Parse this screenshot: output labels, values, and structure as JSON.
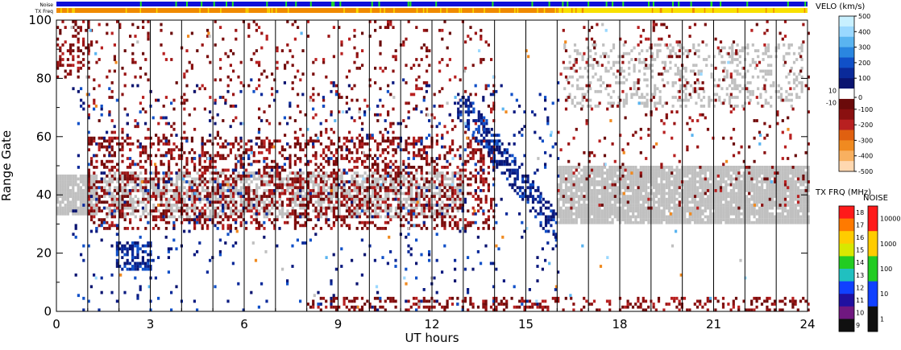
{
  "chart_data": {
    "type": "heatmap",
    "title": "",
    "xlabel": "UT hours",
    "ylabel": "Range Gate",
    "xlim": [
      0,
      24
    ],
    "ylim": [
      0,
      100
    ],
    "x_ticks": [
      "0",
      "3",
      "6",
      "9",
      "12",
      "15",
      "18",
      "21",
      "24"
    ],
    "y_ticks": [
      "0",
      "20",
      "40",
      "60",
      "80",
      "100"
    ],
    "status_bars": [
      {
        "label": "Noise",
        "base_color": "#1010d8",
        "accent_color": "#20e020"
      },
      {
        "label": "TX Freq",
        "segments": [
          {
            "from": 0,
            "to": 16,
            "color": "#f08a00"
          },
          {
            "from": 16,
            "to": 24,
            "color": "#f8e000"
          }
        ]
      }
    ],
    "colorbars": [
      {
        "title": "VELO (km/s)",
        "ticks": [
          "500",
          "400",
          "300",
          "200",
          "100",
          "10",
          "0",
          "-10",
          "-100",
          "-200",
          "-300",
          "-400",
          "-500"
        ],
        "colors": [
          "#c8f0ff",
          "#9ad8ff",
          "#5ab4f0",
          "#2a86e0",
          "#1050c8",
          "#0a2a9a",
          "#0a1470",
          "#ffffff",
          "#6a0a0a",
          "#8a1010",
          "#b82020",
          "#e06010",
          "#f08a20",
          "#f8b060",
          "#ffd8b0"
        ]
      },
      {
        "title": "TX FRQ (MHz)",
        "ticks": [
          "18",
          "17",
          "16",
          "15",
          "14",
          "13",
          "12",
          "11",
          "10",
          "9"
        ],
        "colors": [
          "#ff1a1a",
          "#ff7a00",
          "#ffcc00",
          "#d8e800",
          "#22cc22",
          "#20c0c0",
          "#1040ff",
          "#2010a0",
          "#701880",
          "#101010"
        ]
      },
      {
        "title": "NOISE",
        "ticks": [
          "10000",
          "1000",
          "100",
          "10",
          "1"
        ],
        "colors": [
          "#ff1a1a",
          "#ffcc00",
          "#22cc22",
          "#1040ff",
          "#101010"
        ]
      }
    ],
    "ground_scatter_color": "#c0c0c0",
    "regions": [
      {
        "name": "ground-scatter band 0-1.3h",
        "x": [
          0,
          1.3
        ],
        "gates": [
          33,
          47
        ],
        "kind": "ground",
        "density": 0.9
      },
      {
        "name": "ground-scatter band 1.5-13h",
        "x": [
          1.5,
          13
        ],
        "gates": [
          32,
          48
        ],
        "kind": "ground",
        "density": 0.55
      },
      {
        "name": "ground-scatter band 16-24h",
        "x": [
          16,
          24
        ],
        "gates": [
          30,
          50
        ],
        "kind": "ground",
        "density": 0.9
      },
      {
        "name": "ground-scatter upper 16-24h",
        "x": [
          16.2,
          23.8
        ],
        "gates": [
          70,
          92
        ],
        "kind": "ground",
        "density": 0.25
      },
      {
        "name": "negative velocity main band",
        "x": [
          1.0,
          14.0
        ],
        "gates": [
          28,
          60
        ],
        "kind": "neg",
        "density": 0.32
      },
      {
        "name": "negative velocity upper",
        "x": [
          1.0,
          14.0
        ],
        "gates": [
          55,
          100
        ],
        "kind": "neg",
        "density": 0.07
      },
      {
        "name": "negative velocity late",
        "x": [
          16.0,
          24.0
        ],
        "gates": [
          35,
          100
        ],
        "kind": "neg",
        "density": 0.05
      },
      {
        "name": "near-range negative",
        "x": [
          8.0,
          24.0
        ],
        "gates": [
          0,
          5
        ],
        "kind": "neg",
        "density": 0.3
      },
      {
        "name": "positive velocity 2-3h",
        "x": [
          1.9,
          3.0
        ],
        "gates": [
          14,
          24
        ],
        "kind": "pos",
        "density": 0.55
      },
      {
        "name": "positive velocity scattered",
        "x": [
          0.5,
          16.0
        ],
        "gates": [
          0,
          80
        ],
        "kind": "pos",
        "density": 0.03
      },
      {
        "name": "positive velocity streak 13-16h",
        "x": [
          12.8,
          16.0
        ],
        "gates": [
          20,
          75
        ],
        "kind": "posdiag",
        "density": 0.5
      },
      {
        "name": "mixed scatter 0-1h",
        "x": [
          0.0,
          1.0
        ],
        "gates": [
          80,
          100
        ],
        "kind": "neg",
        "density": 0.25
      }
    ]
  }
}
